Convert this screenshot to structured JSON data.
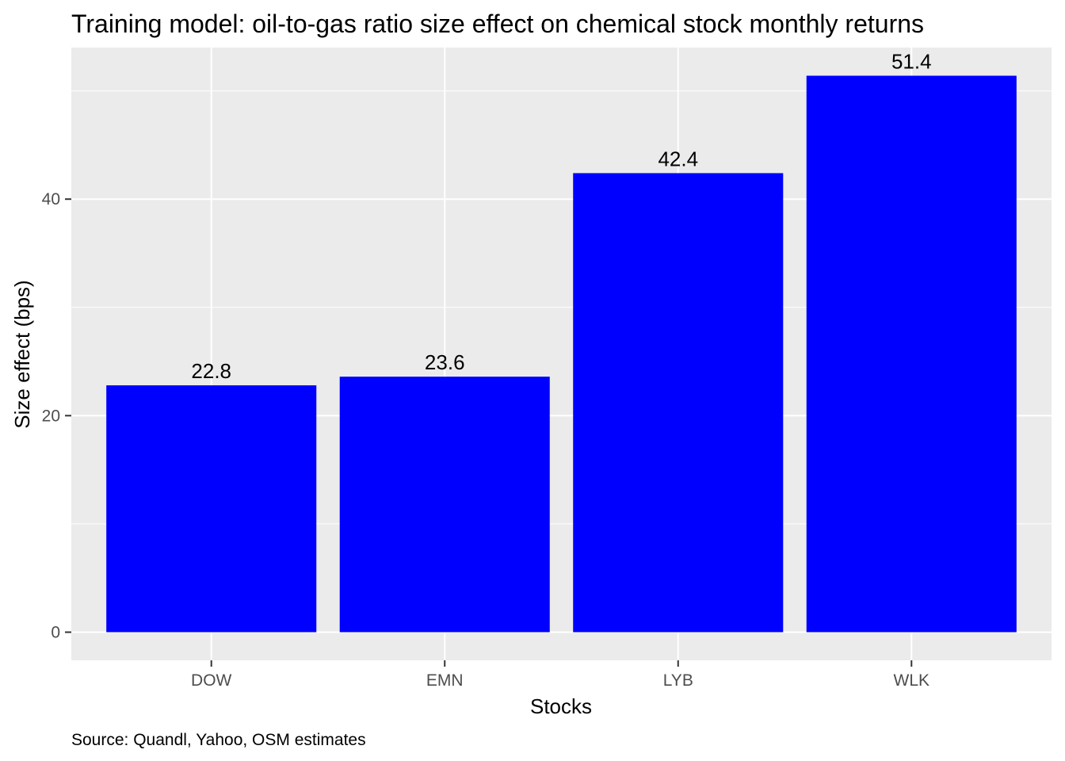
{
  "chart_data": {
    "type": "bar",
    "title": "Training model: oil-to-gas ratio size effect on chemical stock monthly returns",
    "xlabel": "Stocks",
    "ylabel": "Size effect (bps)",
    "caption": "Source: Quandl, Yahoo, OSM estimates",
    "categories": [
      "DOW",
      "EMN",
      "LYB",
      "WLK"
    ],
    "values": [
      22.8,
      23.6,
      42.4,
      51.4
    ],
    "data_labels": [
      "22.8",
      "23.6",
      "42.4",
      "51.4"
    ],
    "yticks": [
      0,
      20,
      40
    ],
    "ytick_labels": [
      "0",
      "20",
      "40"
    ],
    "ylim": [
      -2.6,
      54.0
    ],
    "grid": true,
    "legend": "none",
    "bar_color": "#0000FF",
    "panel_color": "#EBEBEB",
    "grid_color": "#FFFFFF"
  }
}
